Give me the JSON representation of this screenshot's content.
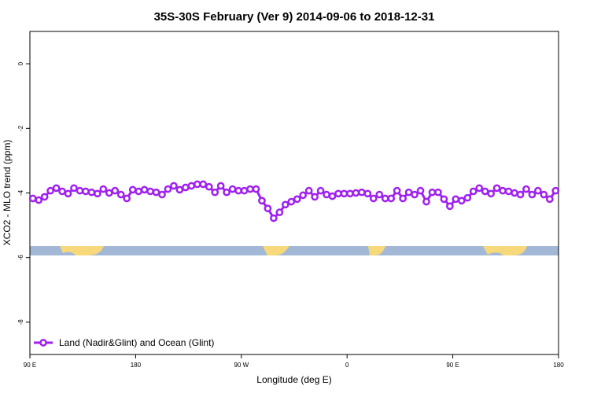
{
  "chart_data": {
    "type": "line",
    "title": "35S-30S February (Ver 9)   2014-09-06 to 2018-12-31",
    "x_label": "Longitude (deg E)",
    "y_label": "XCO2 - MLO trend (ppm)",
    "xlim": [
      90,
      540
    ],
    "ylim": [
      -9,
      1
    ],
    "xticks": [
      {
        "value": 90,
        "label": "90 E"
      },
      180,
      {
        "value": 270,
        "label": "90 W"
      },
      {
        "value": 360,
        "label": "0"
      },
      {
        "value": 450,
        "label": "90 E"
      },
      {
        "value": 540,
        "label": "180"
      }
    ],
    "yticks": [
      -8,
      -6,
      -4,
      -2,
      0
    ],
    "legend": "bottom-left",
    "x": [
      92.5,
      97.5,
      102.5,
      107.5,
      112.5,
      117.5,
      122.5,
      127.5,
      132.5,
      137.5,
      142.5,
      147.5,
      152.5,
      157.5,
      162.5,
      167.5,
      172.5,
      177.5,
      182.5,
      187.5,
      192.5,
      197.5,
      202.5,
      207.5,
      212.5,
      217.5,
      222.5,
      227.5,
      232.5,
      237.5,
      242.5,
      247.5,
      252.5,
      257.5,
      262.5,
      267.5,
      272.5,
      277.5,
      282.5,
      287.5,
      292.5,
      297.5,
      302.5,
      307.5,
      312.5,
      317.5,
      322.5,
      327.5,
      332.5,
      337.5,
      342.5,
      347.5,
      352.5,
      357.5,
      362.5,
      367.5,
      372.5,
      377.5,
      382.5,
      387.5,
      392.5,
      397.5,
      402.5,
      407.5,
      412.5,
      417.5,
      422.5,
      427.5,
      432.5,
      437.5,
      442.5,
      447.5,
      452.5,
      457.5,
      462.5,
      467.5,
      472.5,
      477.5,
      482.5,
      487.5,
      492.5,
      497.5,
      502.5,
      507.5,
      512.5,
      517.5,
      522.5,
      527.5,
      532.5,
      537.5
    ],
    "series": [
      {
        "name": "Land (Nadir&Glint) and Ocean (Glint)",
        "color": "#a020f0",
        "values": [
          -4.17,
          -4.22,
          -4.12,
          -3.93,
          -3.85,
          -3.95,
          -4.02,
          -3.85,
          -3.93,
          -3.95,
          -3.98,
          -4.02,
          -3.88,
          -4.0,
          -3.93,
          -4.05,
          -4.17,
          -3.9,
          -3.95,
          -3.9,
          -3.95,
          -3.98,
          -4.05,
          -3.88,
          -3.78,
          -3.9,
          -3.83,
          -3.78,
          -3.73,
          -3.73,
          -3.81,
          -3.98,
          -3.78,
          -3.98,
          -3.88,
          -3.93,
          -3.93,
          -3.88,
          -3.88,
          -4.24,
          -4.48,
          -4.78,
          -4.6,
          -4.36,
          -4.27,
          -4.19,
          -4.07,
          -3.93,
          -4.12,
          -3.93,
          -4.05,
          -4.1,
          -4.02,
          -4.02,
          -4.02,
          -4.0,
          -3.98,
          -4.02,
          -4.17,
          -4.05,
          -4.17,
          -4.17,
          -3.93,
          -4.17,
          -3.98,
          -4.05,
          -3.93,
          -4.27,
          -3.98,
          -3.98,
          -4.19,
          -4.41,
          -4.19,
          -4.24,
          -4.15,
          -3.95,
          -3.85,
          -3.95,
          -4.02,
          -3.85,
          -3.93,
          -3.95,
          -4.0,
          -4.05,
          -3.88,
          -4.05,
          -3.93,
          -4.05,
          -4.19,
          -3.93
        ]
      }
    ]
  }
}
